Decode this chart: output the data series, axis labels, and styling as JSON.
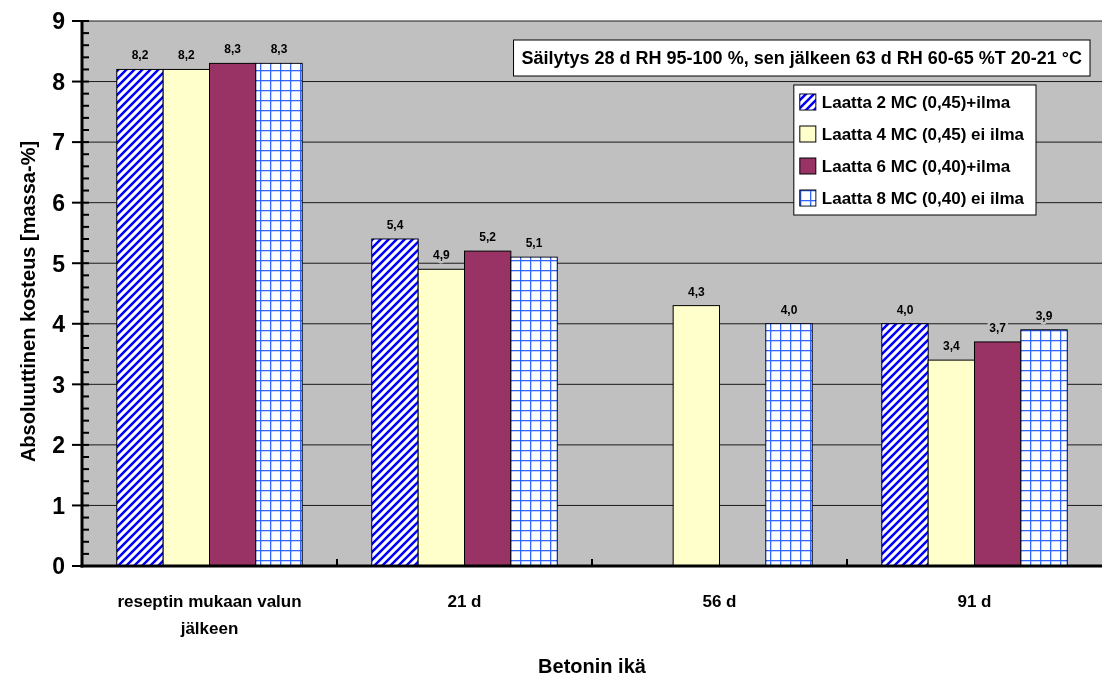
{
  "chart_data": {
    "type": "bar",
    "annotations": [
      "Säilytys 28 d RH 95-100 %, sen jälkeen 63 d RH 60-65 %T 20-21 °C"
    ],
    "xlabel": "Betonin ikä",
    "ylabel": "Absoluuttinen kosteus [massa-%]",
    "categories": [
      "reseptin mukaan valun jälkeen",
      "21 d",
      "56 d",
      "91 d"
    ],
    "series": [
      {
        "name": "Laatta 2 MC (0,45)+ilma",
        "color": "#0000ff",
        "values": [
          8.2,
          5.4,
          null,
          4.0
        ],
        "value_labels": [
          "8,2",
          "5,4",
          null,
          "4,0"
        ]
      },
      {
        "name": "Laatta 4 MC (0,45) ei ilma",
        "color": "#ffffcc",
        "values": [
          8.2,
          4.9,
          4.3,
          3.4
        ],
        "value_labels": [
          "8,2",
          "4,9",
          "4,3",
          "3,4"
        ]
      },
      {
        "name": "Laatta 6 MC (0,40)+ilma",
        "color": "#993366",
        "values": [
          8.3,
          5.2,
          null,
          3.7
        ],
        "value_labels": [
          "8,3",
          "5,2",
          null,
          "3,7"
        ]
      },
      {
        "name": "Laatta 8 MC (0,40) ei ilma",
        "color": "#3366ff",
        "values": [
          8.3,
          5.1,
          4.0,
          3.9
        ],
        "value_labels": [
          "8,3",
          "5,1",
          "4,0",
          "3,9"
        ]
      }
    ],
    "ylim": [
      0,
      9
    ],
    "yticks": [
      0,
      {
        "value": 0.2,
        "label": null
      },
      {
        "value": 0.4,
        "label": null
      },
      {
        "value": 0.6,
        "label": null
      },
      {
        "value": 0.8,
        "label": null
      },
      1,
      {
        "value": 1.2,
        "label": null
      },
      {
        "value": 1.4,
        "label": null
      },
      {
        "value": 1.6,
        "label": null
      },
      {
        "value": 1.8,
        "label": null
      },
      2,
      {
        "value": 2.2,
        "label": null
      },
      {
        "value": 2.4,
        "label": null
      },
      {
        "value": 2.6,
        "label": null
      },
      {
        "value": 2.8,
        "label": null
      },
      3,
      {
        "value": 3.2,
        "label": null
      },
      {
        "value": 3.4,
        "label": null
      },
      {
        "value": 3.6,
        "label": null
      },
      {
        "value": 3.8,
        "label": null
      },
      4,
      {
        "value": 4.2,
        "label": null
      },
      {
        "value": 4.4,
        "label": null
      },
      {
        "value": 4.6,
        "label": null
      },
      {
        "value": 4.8,
        "label": null
      },
      5,
      {
        "value": 5.2,
        "label": null
      },
      {
        "value": 5.4,
        "label": null
      },
      {
        "value": 5.6,
        "label": null
      },
      {
        "value": 5.8,
        "label": null
      },
      6,
      {
        "value": 6.2,
        "label": null
      },
      {
        "value": 6.4,
        "label": null
      },
      {
        "value": 6.6,
        "label": null
      },
      {
        "value": 6.8,
        "label": null
      },
      7,
      {
        "value": 7.2,
        "label": null
      },
      {
        "value": 7.4,
        "label": null
      },
      {
        "value": 7.6,
        "label": null
      },
      {
        "value": 7.8,
        "label": null
      },
      8,
      {
        "value": 8.2,
        "label": null
      },
      {
        "value": 8.4,
        "label": null
      },
      {
        "value": 8.6,
        "label": null
      },
      {
        "value": 8.8,
        "label": null
      },
      9
    ],
    "grid": "y",
    "legend": "top right"
  }
}
